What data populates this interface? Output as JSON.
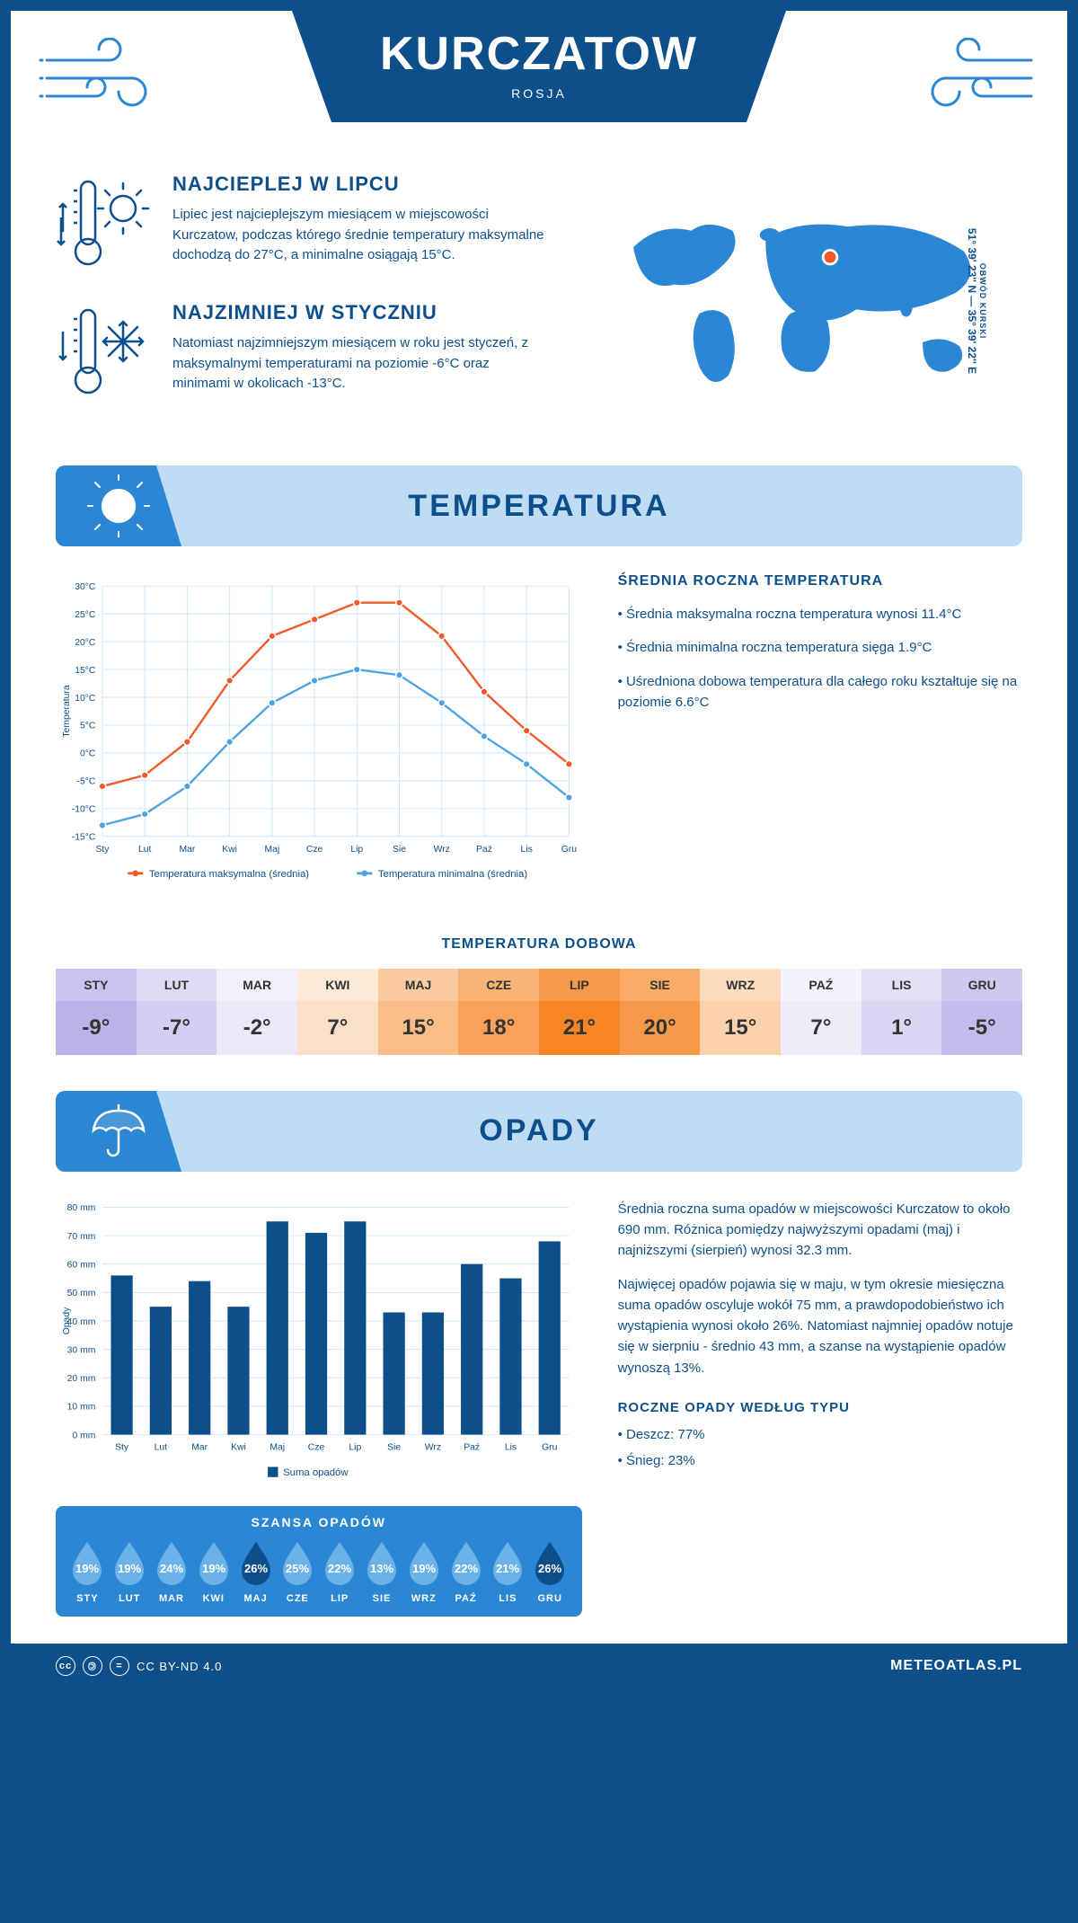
{
  "header": {
    "title": "KURCZATOW",
    "subtitle": "ROSJA"
  },
  "intro": {
    "hot": {
      "title": "NAJCIEPLEJ W LIPCU",
      "body": "Lipiec jest najcieplejszym miesiącem w miejscowości Kurczatow, podczas którego średnie temperatury maksymalne dochodzą do 27°C, a minimalne osiągają 15°C."
    },
    "cold": {
      "title": "NAJZIMNIEJ W STYCZNIU",
      "body": "Natomiast najzimniejszym miesiącem w roku jest styczeń, z maksymalnymi temperaturami na poziomie -6°C oraz minimami w okolicach -13°C."
    },
    "coords": "51° 39' 23'' N — 35° 39' 22'' E",
    "region": "OBWÓD KURSKI"
  },
  "temp_section": {
    "heading": "TEMPERATURA",
    "chart": {
      "months": [
        "Sty",
        "Lut",
        "Mar",
        "Kwi",
        "Maj",
        "Cze",
        "Lip",
        "Sie",
        "Wrz",
        "Paź",
        "Lis",
        "Gru"
      ],
      "y_ticks": [
        -15,
        -10,
        -5,
        0,
        5,
        10,
        15,
        20,
        25,
        30
      ],
      "y_unit": "°C",
      "y_title": "Temperatura",
      "max_series": [
        -6,
        -4,
        2,
        13,
        21,
        24,
        27,
        27,
        21,
        11,
        4,
        -2
      ],
      "min_series": [
        -13,
        -11,
        -6,
        2,
        9,
        13,
        15,
        14,
        9,
        3,
        -2,
        -8
      ],
      "max_color": "#f05a28",
      "min_color": "#4ca3e0",
      "grid_color": "#d0e4f5",
      "legend_max": "Temperatura maksymalna (średnia)",
      "legend_min": "Temperatura minimalna (średnia)"
    },
    "stats_title": "ŚREDNIA ROCZNA TEMPERATURA",
    "stats": [
      "Średnia maksymalna roczna temperatura wynosi 11.4°C",
      "Średnia minimalna roczna temperatura sięga 1.9°C",
      "Uśredniona dobowa temperatura dla całego roku kształtuje się na poziomie 6.6°C"
    ],
    "daily_title": "TEMPERATURA DOBOWA",
    "daily": {
      "months": [
        "STY",
        "LUT",
        "MAR",
        "KWI",
        "MAJ",
        "CZE",
        "LIP",
        "SIE",
        "WRZ",
        "PAŹ",
        "LIS",
        "GRU"
      ],
      "values": [
        "-9°",
        "-7°",
        "-2°",
        "7°",
        "15°",
        "18°",
        "21°",
        "20°",
        "15°",
        "7°",
        "1°",
        "-5°"
      ],
      "head_colors": [
        "#c9c4ef",
        "#dedbf5",
        "#f1effa",
        "#fce9d8",
        "#fbcba0",
        "#f9b374",
        "#f7994a",
        "#f9ac66",
        "#fcdcbf",
        "#f4f2fb",
        "#e3e0f6",
        "#cfc9f0"
      ],
      "val_colors": [
        "#bab3ea",
        "#d3cff2",
        "#ebe8f8",
        "#fbe0c8",
        "#fabd88",
        "#f8a158",
        "#f68526",
        "#f7994a",
        "#fbd2ad",
        "#efecf9",
        "#dad6f3",
        "#c2bced"
      ]
    }
  },
  "precip_section": {
    "heading": "OPADY",
    "chart": {
      "months": [
        "Sty",
        "Lut",
        "Mar",
        "Kwi",
        "Maj",
        "Cze",
        "Lip",
        "Sie",
        "Wrz",
        "Paź",
        "Lis",
        "Gru"
      ],
      "values": [
        56,
        45,
        54,
        45,
        75,
        71,
        75,
        43,
        43,
        60,
        55,
        68
      ],
      "y_ticks": [
        0,
        10,
        20,
        30,
        40,
        50,
        60,
        70,
        80
      ],
      "y_unit": " mm",
      "y_title": "Opady",
      "bar_color": "#0d4f8b",
      "grid_color": "#d0e4f5",
      "legend": "Suma opadów"
    },
    "body1": "Średnia roczna suma opadów w miejscowości Kurczatow to około 690 mm. Różnica pomiędzy najwyższymi opadami (maj) i najniższymi (sierpień) wynosi 32.3 mm.",
    "body2": "Najwięcej opadów pojawia się w maju, w tym okresie miesięczna suma opadów oscyluje wokół 75 mm, a prawdopodobieństwo ich wystąpienia wynosi około 26%. Natomiast najmniej opadów notuje się w sierpniu - średnio 43 mm, a szanse na wystąpienie opadów wynoszą 13%.",
    "chance_title": "SZANSA OPADÓW",
    "chance": {
      "months": [
        "STY",
        "LUT",
        "MAR",
        "KWI",
        "MAJ",
        "CZE",
        "LIP",
        "SIE",
        "WRZ",
        "PAŹ",
        "LIS",
        "GRU"
      ],
      "values": [
        19,
        19,
        24,
        19,
        26,
        25,
        22,
        13,
        19,
        22,
        21,
        26
      ],
      "light": "#6bb2e8",
      "dark": "#0d4f8b",
      "dark_threshold": 26
    },
    "type_title": "ROCZNE OPADY WEDŁUG TYPU",
    "type_rain": "• Deszcz: 77%",
    "type_snow": "• Śnieg: 23%"
  },
  "footer": {
    "license": "CC BY-ND 4.0",
    "site": "METEOATLAS.PL"
  }
}
